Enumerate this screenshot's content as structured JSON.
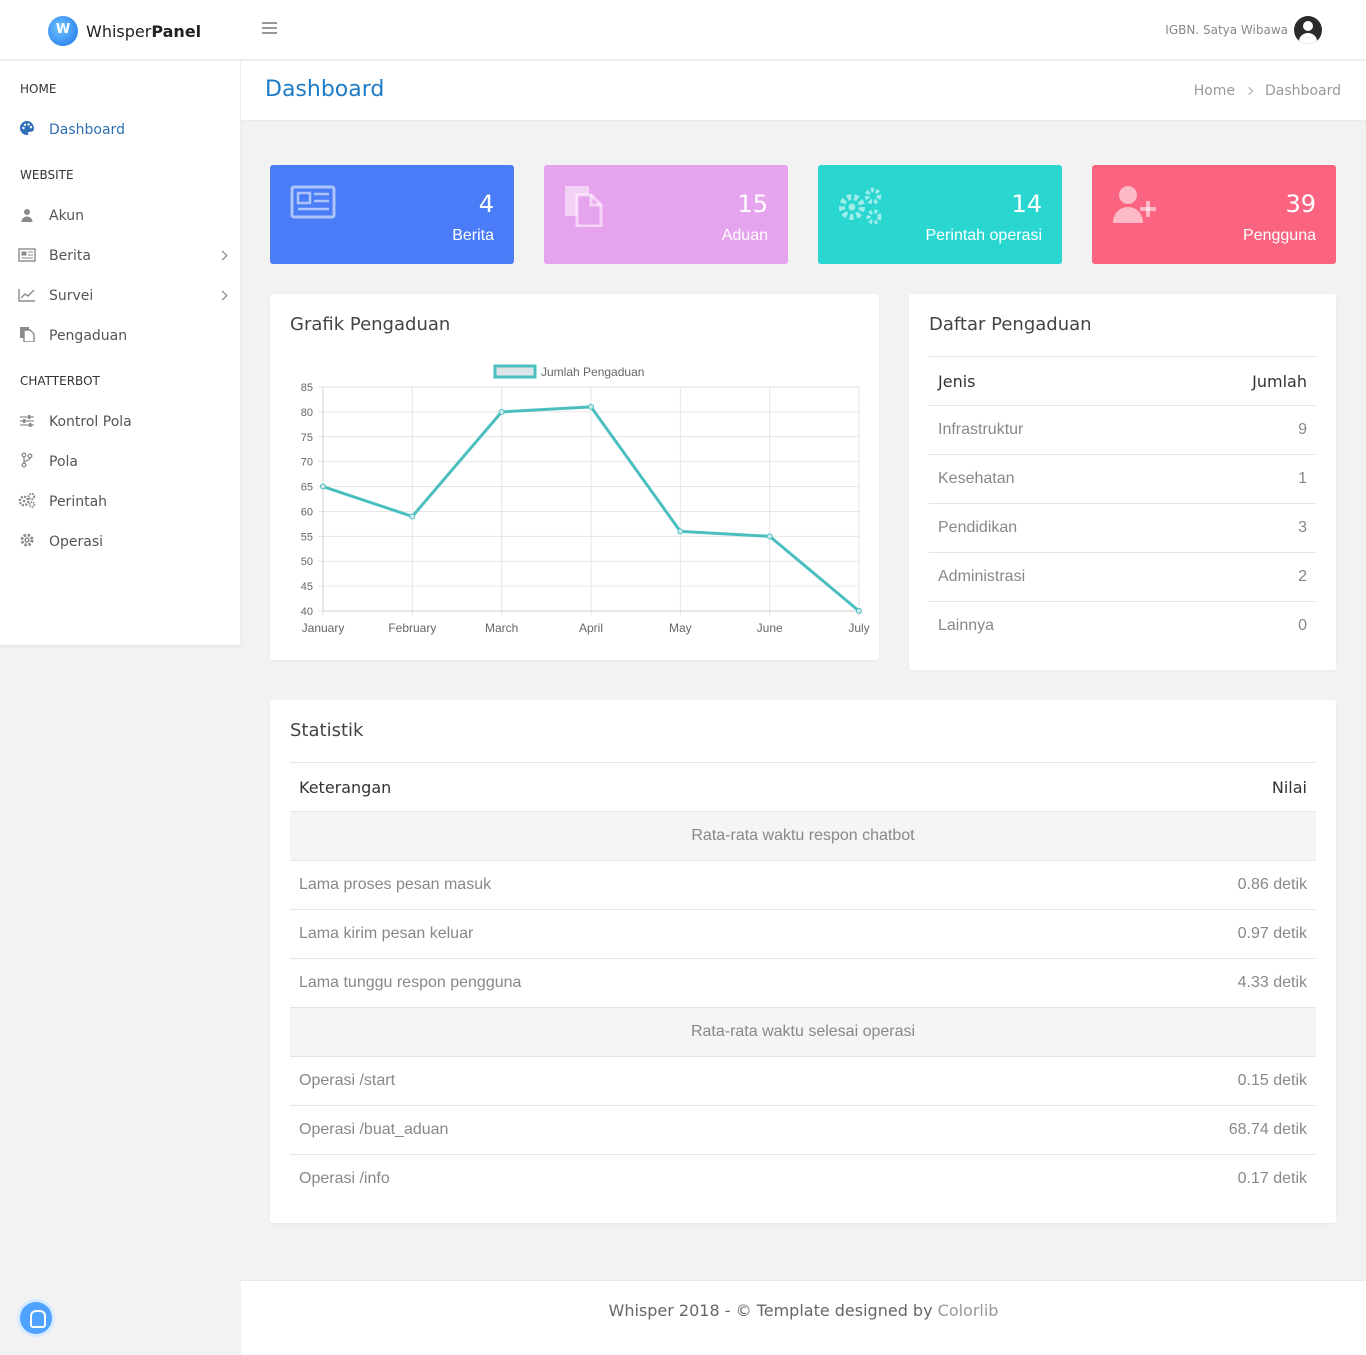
{
  "app": {
    "logo_light": "Whisper",
    "logo_bold": "Panel",
    "user_name": "IGBN. Satya Wibawa"
  },
  "sidebar": {
    "sections": [
      {
        "label": "HOME"
      },
      {
        "label": "WEBSITE"
      },
      {
        "label": "CHATTERBOT"
      }
    ],
    "items": [
      {
        "label": "Dashboard",
        "icon": "palette-icon",
        "active": true
      },
      {
        "label": "Akun",
        "icon": "user-icon"
      },
      {
        "label": "Berita",
        "icon": "newspaper-icon",
        "has_submenu": true
      },
      {
        "label": "Survei",
        "icon": "line-chart-icon",
        "has_submenu": true
      },
      {
        "label": "Pengaduan",
        "icon": "files-icon"
      },
      {
        "label": "Kontrol Pola",
        "icon": "sliders-icon"
      },
      {
        "label": "Pola",
        "icon": "branch-icon"
      },
      {
        "label": "Perintah",
        "icon": "gears-icon"
      },
      {
        "label": "Operasi",
        "icon": "gear-icon"
      }
    ]
  },
  "header": {
    "title": "Dashboard",
    "breadcrumb": [
      "Home",
      "Dashboard"
    ]
  },
  "stats": [
    {
      "value": "4",
      "label": "Berita",
      "color": "#4a7cf7",
      "icon": "newspaper-icon"
    },
    {
      "value": "15",
      "label": "Aduan",
      "color": "#e6a3ee",
      "icon": "files-icon"
    },
    {
      "value": "14",
      "label": "Perintah operasi",
      "color": "#2ad7d0",
      "icon": "gears-icon"
    },
    {
      "value": "39",
      "label": "Pengguna",
      "color": "#fb6480",
      "icon": "user-plus-icon"
    }
  ],
  "chart_card": {
    "title": "Grafik Pengaduan"
  },
  "chart_data": {
    "type": "line",
    "categories": [
      "January",
      "February",
      "March",
      "April",
      "May",
      "June",
      "July"
    ],
    "series": [
      {
        "name": "Jumlah Pengaduan",
        "values": [
          65,
          59,
          80,
          81,
          56,
          55,
          40
        ]
      }
    ],
    "ylim": [
      40,
      85
    ],
    "yticks": [
      85,
      80,
      75,
      70,
      65,
      60,
      55,
      50,
      45,
      40
    ],
    "grid": true,
    "legend": "top-center",
    "line_color": "#4bbfc0"
  },
  "complaints": {
    "title": "Daftar Pengaduan",
    "headers": [
      "Jenis",
      "Jumlah"
    ],
    "rows": [
      [
        "Infrastruktur",
        "9"
      ],
      [
        "Kesehatan",
        "1"
      ],
      [
        "Pendidikan",
        "3"
      ],
      [
        "Administrasi",
        "2"
      ],
      [
        "Lainnya",
        "0"
      ]
    ]
  },
  "statistik": {
    "title": "Statistik",
    "headers": [
      "Keterangan",
      "Nilai"
    ],
    "group1": "Rata-rata waktu respon chatbot",
    "rows1": [
      [
        "Lama proses pesan masuk",
        "0.86 detik"
      ],
      [
        "Lama kirim pesan keluar",
        "0.97 detik"
      ],
      [
        "Lama tunggu respon pengguna",
        "4.33 detik"
      ]
    ],
    "group2": "Rata-rata waktu selesai operasi",
    "rows2": [
      [
        "Operasi /start",
        "0.15 detik"
      ],
      [
        "Operasi /buat_aduan",
        "68.74 detik"
      ],
      [
        "Operasi /info",
        "0.17 detik"
      ]
    ]
  },
  "footer": {
    "text": "Whisper 2018 - © Template designed by ",
    "link": "Colorlib"
  }
}
